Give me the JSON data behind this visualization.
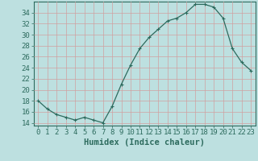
{
  "x": [
    0,
    1,
    2,
    3,
    4,
    5,
    6,
    7,
    8,
    9,
    10,
    11,
    12,
    13,
    14,
    15,
    16,
    17,
    18,
    19,
    20,
    21,
    22,
    23
  ],
  "y": [
    18,
    16.5,
    15.5,
    15,
    14.5,
    15,
    14.5,
    14,
    17,
    21,
    24.5,
    27.5,
    29.5,
    31,
    32.5,
    33,
    34,
    35.5,
    35.5,
    35,
    33,
    27.5,
    25,
    23.5
  ],
  "line_color": "#2d6b5e",
  "marker": "+",
  "marker_size": 3.5,
  "marker_linewidth": 0.8,
  "bg_color": "#bde0e0",
  "grid_color": "#d0a0a0",
  "xlabel": "Humidex (Indice chaleur)",
  "xlim": [
    -0.5,
    23.5
  ],
  "ylim": [
    13.5,
    36
  ],
  "yticks": [
    14,
    16,
    18,
    20,
    22,
    24,
    26,
    28,
    30,
    32,
    34
  ],
  "xticks": [
    0,
    1,
    2,
    3,
    4,
    5,
    6,
    7,
    8,
    9,
    10,
    11,
    12,
    13,
    14,
    15,
    16,
    17,
    18,
    19,
    20,
    21,
    22,
    23
  ],
  "tick_color": "#2d6b5e",
  "label_fontsize": 6.5,
  "xlabel_fontsize": 7.5,
  "line_width": 0.9
}
